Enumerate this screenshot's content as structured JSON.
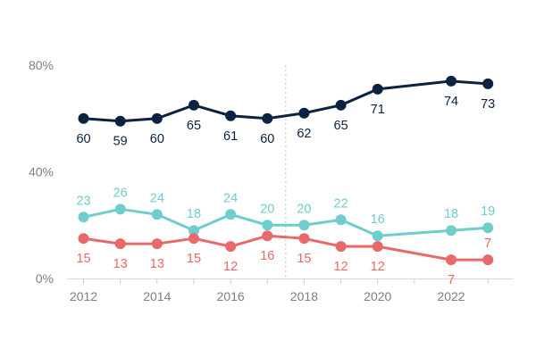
{
  "chart_data": {
    "type": "line",
    "title": "",
    "xlabel": "",
    "ylabel": "",
    "x": [
      2012,
      2013,
      2014,
      2015,
      2016,
      2017,
      2018,
      2019,
      2020,
      2022,
      2023
    ],
    "xticks": [
      "2012",
      "2014",
      "2016",
      "2018",
      "2020",
      "2022"
    ],
    "yticks": [
      "0%",
      "40%",
      "80%"
    ],
    "ylim": [
      0,
      80
    ],
    "grid": false,
    "series": [
      {
        "name": "series-navy",
        "color": "#0b2340",
        "values": [
          60,
          59,
          60,
          65,
          61,
          60,
          62,
          65,
          71,
          74,
          73
        ],
        "label_position": [
          "below",
          "below",
          "below",
          "below",
          "below",
          "below",
          "below",
          "below",
          "below",
          "below",
          "below"
        ]
      },
      {
        "name": "series-teal",
        "color": "#6fcdcd",
        "values": [
          23,
          26,
          24,
          18,
          24,
          20,
          20,
          22,
          16,
          18,
          19
        ],
        "label_position": [
          "above",
          "above",
          "above",
          "above",
          "above",
          "above",
          "above",
          "above",
          "above",
          "above",
          "above"
        ]
      },
      {
        "name": "series-coral",
        "color": "#e8696a",
        "values": [
          15,
          13,
          13,
          15,
          12,
          16,
          15,
          12,
          12,
          7,
          7
        ],
        "label_position": [
          "below",
          "below",
          "below",
          "below",
          "below",
          "below",
          "below",
          "below",
          "below",
          "below",
          "above"
        ]
      }
    ],
    "annotations": [
      {
        "type": "vertical-dotted-line",
        "x": 2017.5
      }
    ]
  }
}
